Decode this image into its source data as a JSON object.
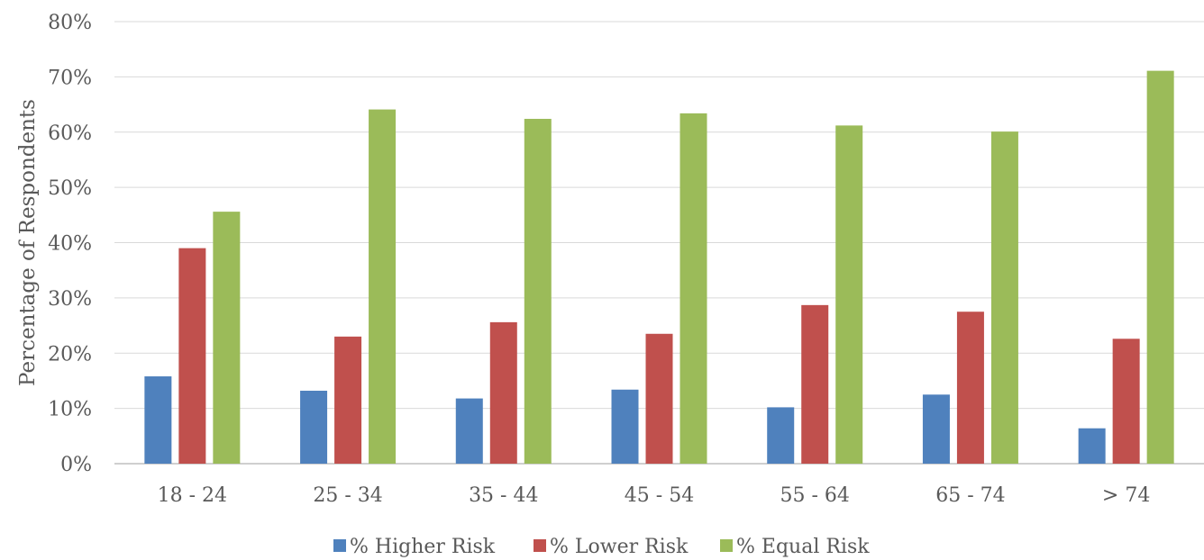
{
  "chart_data": {
    "type": "bar",
    "title": "",
    "xlabel": "",
    "ylabel": "Percentage of Respondents",
    "ylim": [
      0,
      80
    ],
    "yticks": [
      0,
      10,
      20,
      30,
      40,
      50,
      60,
      70,
      80
    ],
    "ytick_labels": [
      "0%",
      "10%",
      "20%",
      "30%",
      "40%",
      "50%",
      "60%",
      "70%",
      "80%"
    ],
    "grid": true,
    "legend_position": "bottom",
    "categories": [
      "18 - 24",
      "25 - 34",
      "35 - 44",
      "45 - 54",
      "55 - 64",
      "65 - 74",
      "> 74"
    ],
    "series": [
      {
        "name": "% Higher Risk",
        "color": "#4f81bd",
        "values": [
          15.8,
          13.2,
          11.8,
          13.4,
          10.2,
          12.5,
          6.4
        ]
      },
      {
        "name": "% Lower Risk",
        "color": "#c0504d",
        "values": [
          39.0,
          23.0,
          25.6,
          23.5,
          28.7,
          27.5,
          22.6
        ]
      },
      {
        "name": "% Equal Risk",
        "color": "#9bbb59",
        "values": [
          45.6,
          64.1,
          62.4,
          63.4,
          61.2,
          60.1,
          71.1
        ]
      }
    ]
  }
}
